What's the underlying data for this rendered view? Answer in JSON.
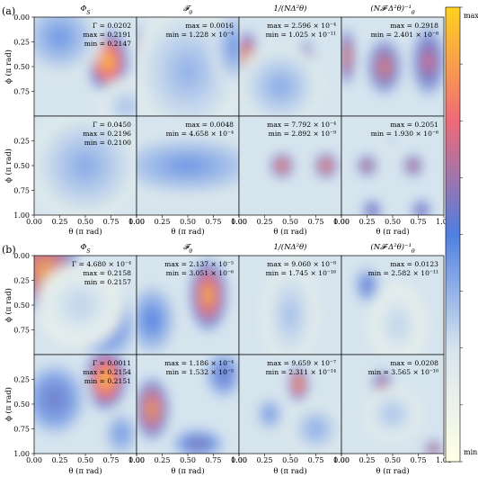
{
  "chart_data": {
    "type": "heatmap",
    "colorbar": {
      "top_label": "max",
      "bottom_label": "min",
      "colors": [
        "#ffffe5",
        "#d6e4ee",
        "#4f7fe0",
        "#f06a78",
        "#ffd21f"
      ]
    },
    "panels": [
      {
        "label": "(a)",
        "column_titles": [
          "Φ",
          "𝓕",
          "1/(NΔ²θ)",
          "(N𝓕·Δ²θ)⁻¹"
        ],
        "column_title_subscripts": [
          "S",
          "θ",
          "",
          "θ"
        ],
        "xlabel": "θ (π rad)",
        "ylabel": "ϕ (π rad)",
        "xticks": [
          "0.00",
          "0.25",
          "0.50",
          "0.75",
          "1.00"
        ],
        "yticks_top": [
          "0.00",
          "0.25",
          "0.50",
          "0.75"
        ],
        "yticks_bottom": [
          "0.25",
          "0.50",
          "0.75",
          "1.00"
        ],
        "xlim": [
          0,
          1
        ],
        "ylim": [
          0,
          1
        ],
        "rows": [
          [
            {
              "lines": [
                "Γ = 0.0202",
                "max = 0.2191",
                "min = 0.2147"
              ],
              "blobs": [
                [
                  0.72,
                  0.45,
                  0.14,
                  0.22,
                  1.0
                ],
                [
                  0.25,
                  0.2,
                  0.3,
                  0.3,
                  0.45
                ],
                [
                  0.9,
                  0.9,
                  0.2,
                  0.2,
                  0.35
                ]
              ]
            },
            {
              "lines": [
                "max = 0.0016",
                "min = 1.228 × 10⁻⁴"
              ],
              "blobs": [
                [
                  0.05,
                  0.4,
                  0.12,
                  0.22,
                  0.85
                ],
                [
                  0.5,
                  0.55,
                  0.4,
                  0.5,
                  0.38
                ],
                [
                  0.95,
                  0.3,
                  0.15,
                  0.3,
                  0.45
                ]
              ]
            },
            {
              "lines": [
                "max = 2.596 × 10⁻⁴",
                "min = 1.025 × 10⁻¹¹"
              ],
              "blobs": [
                [
                  0.08,
                  0.4,
                  0.07,
                  0.18,
                  0.95
                ],
                [
                  0.65,
                  0.45,
                  0.06,
                  0.15,
                  0.85
                ],
                [
                  0.4,
                  0.7,
                  0.3,
                  0.3,
                  0.4
                ]
              ]
            },
            {
              "lines": [
                "max = 0.2918",
                "min = 2.401 × 10⁻⁸"
              ],
              "blobs": [
                [
                  0.05,
                  0.4,
                  0.06,
                  0.2,
                  0.85
                ],
                [
                  0.42,
                  0.5,
                  0.12,
                  0.2,
                  0.8
                ],
                [
                  0.85,
                  0.45,
                  0.12,
                  0.25,
                  0.75
                ]
              ]
            }
          ],
          [
            {
              "lines": [
                "Γ = 0.0450",
                "max = 0.2196",
                "min = 0.2100"
              ],
              "blobs": [
                [
                  0.62,
                  0.45,
                  0.12,
                  0.09,
                  1.0
                ],
                [
                  0.5,
                  0.5,
                  0.4,
                  0.4,
                  0.4
                ]
              ]
            },
            {
              "lines": [
                "max = 0.0048",
                "min = 4.658 × 10⁻⁴"
              ],
              "blobs": [
                [
                  0.5,
                  0.47,
                  0.6,
                  0.08,
                  0.95
                ],
                [
                  0.5,
                  0.5,
                  0.6,
                  0.25,
                  0.45
                ]
              ]
            },
            {
              "lines": [
                "max = 7.792 × 10⁻⁴",
                "min = 2.892 × 10⁻⁹"
              ],
              "blobs": [
                [
                  0.42,
                  0.5,
                  0.08,
                  0.09,
                  0.9
                ],
                [
                  0.85,
                  0.5,
                  0.08,
                  0.09,
                  0.9
                ]
              ]
            },
            {
              "lines": [
                "max = 0.2051",
                "min = 1.930 × 10⁻⁶"
              ],
              "blobs": [
                [
                  0.25,
                  0.5,
                  0.07,
                  0.08,
                  0.8
                ],
                [
                  0.7,
                  0.5,
                  0.07,
                  0.08,
                  0.8
                ],
                [
                  0.3,
                  0.95,
                  0.07,
                  0.08,
                  0.7
                ],
                [
                  0.78,
                  0.95,
                  0.07,
                  0.08,
                  0.7
                ],
                [
                  0.5,
                  0.25,
                  0.07,
                  0.07,
                  0.35
                ]
              ]
            }
          ]
        ]
      },
      {
        "label": "(b)",
        "column_titles": [
          "Φ",
          "𝓕",
          "1/(NΔ²θ)",
          "(N𝓕·Δ²θ)⁻¹"
        ],
        "column_title_subscripts": [
          "S",
          "θ",
          "",
          "θ"
        ],
        "xlabel": "θ (π rad)",
        "ylabel": "ϕ (π rad)",
        "xticks": [
          "0.00",
          "0.25",
          "0.50",
          "0.75",
          "1.00"
        ],
        "yticks_top": [
          "0.00",
          "0.25",
          "0.50",
          "0.75"
        ],
        "yticks_bottom": [
          "0.25",
          "0.50",
          "0.75",
          "1.00"
        ],
        "xlim": [
          0,
          1
        ],
        "ylim": [
          0,
          1
        ],
        "rows": [
          [
            {
              "lines": [
                "Γ = 4.680 × 10⁻⁴",
                "max = 0.2158",
                "min = 0.2157"
              ],
              "blobs": [
                [
                  0.1,
                  0.15,
                  0.25,
                  0.3,
                  0.9
                ],
                [
                  0.7,
                  0.7,
                  0.25,
                  0.3,
                  0.55
                ],
                [
                  0.45,
                  0.5,
                  0.3,
                  0.3,
                  0.3
                ]
              ]
            },
            {
              "lines": [
                "max = 2.137 × 10⁻⁵",
                "min = 3.051 × 10⁻⁶"
              ],
              "blobs": [
                [
                  0.7,
                  0.4,
                  0.13,
                  0.25,
                  0.95
                ],
                [
                  0.15,
                  0.65,
                  0.2,
                  0.3,
                  0.5
                ]
              ]
            },
            {
              "lines": [
                "max = 9.060 × 10⁻⁸",
                "min = 1.745 × 10⁻¹⁶"
              ],
              "blobs": [
                [
                  0.35,
                  0.4,
                  0.07,
                  0.25,
                  0.55
                ],
                [
                  0.65,
                  0.85,
                  0.07,
                  0.1,
                  0.7
                ],
                [
                  0.5,
                  0.6,
                  0.2,
                  0.4,
                  0.35
                ]
              ]
            },
            {
              "lines": [
                "max = 0.0123",
                "min = 2.582 × 10⁻¹¹"
              ],
              "blobs": [
                [
                  0.25,
                  0.3,
                  0.1,
                  0.15,
                  0.55
                ],
                [
                  0.55,
                  0.7,
                  0.2,
                  0.3,
                  0.3
                ]
              ]
            }
          ],
          [
            {
              "lines": [
                "Γ = 0.0011",
                "max = 0.2154",
                "min = 0.2151"
              ],
              "blobs": [
                [
                  0.7,
                  0.25,
                  0.14,
                  0.22,
                  1.0
                ],
                [
                  0.2,
                  0.45,
                  0.25,
                  0.3,
                  0.55
                ],
                [
                  0.85,
                  0.8,
                  0.15,
                  0.2,
                  0.45
                ]
              ]
            },
            {
              "lines": [
                "max = 1.186 × 10⁻⁴",
                "min = 1.532 × 10⁻⁵"
              ],
              "blobs": [
                [
                  0.15,
                  0.55,
                  0.12,
                  0.22,
                  0.9
                ],
                [
                  0.6,
                  0.9,
                  0.2,
                  0.12,
                  0.6
                ],
                [
                  0.85,
                  0.2,
                  0.15,
                  0.2,
                  0.55
                ]
              ]
            },
            {
              "lines": [
                "max = 9.659 × 10⁻⁷",
                "min = 2.311 × 10⁻¹⁴"
              ],
              "blobs": [
                [
                  0.58,
                  0.3,
                  0.07,
                  0.12,
                  0.95
                ],
                [
                  0.3,
                  0.6,
                  0.12,
                  0.15,
                  0.45
                ],
                [
                  0.75,
                  0.75,
                  0.2,
                  0.2,
                  0.4
                ]
              ]
            },
            {
              "lines": [
                "max = 0.0208",
                "min = 3.565 × 10⁻¹⁰"
              ],
              "blobs": [
                [
                  0.4,
                  0.3,
                  0.07,
                  0.1,
                  0.8
                ],
                [
                  0.9,
                  0.95,
                  0.06,
                  0.06,
                  0.85
                ],
                [
                  0.5,
                  0.6,
                  0.2,
                  0.2,
                  0.35
                ]
              ]
            }
          ]
        ]
      }
    ]
  }
}
